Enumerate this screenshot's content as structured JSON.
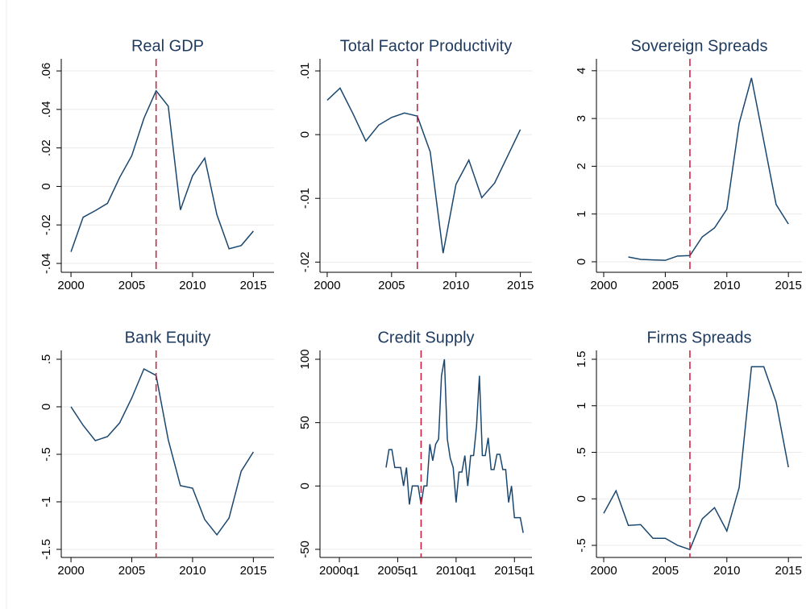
{
  "chart_data": [
    {
      "type": "line",
      "title": "Real GDP",
      "x": [
        2000,
        2001,
        2002,
        2003,
        2004,
        2005,
        2006,
        2007,
        2008,
        2009,
        2010,
        2011,
        2012,
        2013,
        2014,
        2015
      ],
      "series": [
        {
          "color": "#1a476f",
          "values": [
            -0.034,
            -0.016,
            -0.0126,
            -0.0088,
            0.0046,
            0.016,
            0.0354,
            0.0497,
            0.0417,
            -0.0122,
            0.0055,
            0.0147,
            -0.0147,
            -0.0324,
            -0.0307,
            -0.0232
          ]
        }
      ],
      "xlim": [
        1999.2,
        2016.7
      ],
      "xticks": [
        2000,
        2005,
        2010,
        2015
      ],
      "ylim": [
        -0.0446,
        0.0663
      ],
      "yticks": [
        {
          "value": -0.04,
          "label": "-.04"
        },
        {
          "value": -0.02,
          "label": "-.02"
        },
        0,
        {
          "value": 0.02,
          "label": ".02"
        },
        {
          "value": 0.04,
          "label": ".04"
        },
        {
          "value": 0.06,
          "label": ".06"
        }
      ],
      "grid": true,
      "vline": 2007,
      "vline_color": "#d4153a"
    },
    {
      "type": "line",
      "title": "Total Factor Productivity",
      "x": [
        2000,
        2001,
        2002,
        2003,
        2004,
        2005,
        2006,
        2007,
        2008,
        2009,
        2010,
        2011,
        2012,
        2013,
        2014,
        2015
      ],
      "series": [
        {
          "color": "#1a476f",
          "values": [
            0.0054,
            0.0073,
            0.0033,
            -0.001,
            0.0015,
            0.0027,
            0.0034,
            0.0029,
            -0.0027,
            -0.0186,
            -0.0078,
            -0.004,
            -0.0099,
            -0.0076,
            -0.0034,
            0.0008
          ]
        }
      ],
      "xlim": [
        1999.44,
        2015.9
      ],
      "xticks": [
        2000,
        2005,
        2010,
        2015
      ],
      "ylim": [
        -0.0216,
        0.0119
      ],
      "yticks": [
        {
          "value": -0.02,
          "label": "-.02"
        },
        {
          "value": -0.01,
          "label": "-.01"
        },
        0,
        {
          "value": 0.01,
          "label": ".01"
        }
      ],
      "grid": true,
      "vline": 2007,
      "vline_color": "#d4153a"
    },
    {
      "type": "line",
      "title": "Sovereign Spreads",
      "x": [
        2000,
        2001,
        2002,
        2003,
        2004,
        2005,
        2006,
        2007,
        2008,
        2009,
        2010,
        2011,
        2012,
        2013,
        2014,
        2015
      ],
      "series": [
        {
          "color": "#1a476f",
          "values": [
            null,
            null,
            0.1,
            0.05,
            0.04,
            0.03,
            0.12,
            0.13,
            0.52,
            0.71,
            1.1,
            2.9,
            3.85,
            2.53,
            1.2,
            0.79
          ]
        }
      ],
      "xlim": [
        1999.41,
        2016.1
      ],
      "xticks": [
        2000,
        2005,
        2010,
        2015
      ],
      "ylim": [
        -0.22,
        4.25
      ],
      "yticks": [
        0,
        1,
        2,
        3,
        4
      ],
      "grid": true,
      "vline": 2007,
      "vline_color": "#d4153a"
    },
    {
      "type": "line",
      "title": "Bank Equity",
      "x": [
        2000,
        2001,
        2002,
        2003,
        2004,
        2005,
        2006,
        2007,
        2008,
        2009,
        2010,
        2011,
        2012,
        2013,
        2014,
        2015
      ],
      "series": [
        {
          "color": "#1a476f",
          "values": [
            0,
            -0.195,
            -0.356,
            -0.314,
            -0.17,
            0.093,
            0.398,
            0.33,
            -0.347,
            -0.83,
            -0.856,
            -1.186,
            -1.347,
            -1.17,
            -0.678,
            -0.475
          ]
        }
      ],
      "xlim": [
        1999.2,
        2016.7
      ],
      "xticks": [
        2000,
        2005,
        2010,
        2015
      ],
      "ylim": [
        -1.585,
        0.593
      ],
      "yticks": [
        {
          "value": -1.5,
          "label": "-1.5"
        },
        -1,
        {
          "value": -0.5,
          "label": "-.5"
        },
        0,
        {
          "value": 0.5,
          "label": ".5"
        }
      ],
      "grid": true,
      "vline": 2007,
      "vline_color": "#d4153a"
    },
    {
      "type": "line",
      "title": "Credit Supply",
      "x": [
        2004,
        2004.25,
        2004.5,
        2004.75,
        2005,
        2005.25,
        2005.5,
        2005.75,
        2006,
        2006.25,
        2006.5,
        2006.75,
        2007,
        2007.25,
        2007.5,
        2007.75,
        2008,
        2008.25,
        2008.5,
        2008.75,
        2009,
        2009.25,
        2009.5,
        2009.75,
        2010,
        2010.25,
        2010.5,
        2010.75,
        2011,
        2011.25,
        2011.5,
        2011.75,
        2012,
        2012.25,
        2012.5,
        2012.75,
        2013,
        2013.25,
        2013.5,
        2013.75,
        2014,
        2014.25,
        2014.5,
        2014.75,
        2015,
        2015.25,
        2015.5,
        2015.75
      ],
      "series": [
        {
          "color": "#1a476f",
          "values": [
            14.6,
            28.7,
            28.7,
            14.6,
            14.6,
            14.6,
            0,
            14.6,
            -14.6,
            0,
            0,
            0,
            -14.6,
            0,
            0,
            33,
            20,
            33,
            37,
            87,
            100,
            37,
            22,
            14.6,
            -13,
            11,
            11,
            24,
            0,
            24,
            24,
            47,
            87,
            24,
            24,
            38,
            13,
            13,
            25,
            25,
            13,
            13,
            -13,
            0,
            -25,
            -25,
            -25,
            -37
          ]
        }
      ],
      "xlim": [
        1998.34,
        2016.5
      ],
      "xticks": [
        {
          "value": 2000,
          "label": "2000q1"
        },
        {
          "value": 2005,
          "label": "2005q1"
        },
        {
          "value": 2010,
          "label": "2010q1"
        },
        {
          "value": 2015,
          "label": "2015q1"
        }
      ],
      "ylim": [
        -56.4,
        107
      ],
      "yticks": [
        -50,
        0,
        50,
        100
      ],
      "grid": true,
      "vline": 2007,
      "vline_color": "#d4153a"
    },
    {
      "type": "line",
      "title": "Firms Spreads",
      "x": [
        2000,
        2001,
        2002,
        2003,
        2004,
        2005,
        2006,
        2007,
        2008,
        2009,
        2010,
        2011,
        2012,
        2013,
        2014,
        2015
      ],
      "series": [
        {
          "color": "#1a476f",
          "values": [
            -0.156,
            0.087,
            -0.286,
            -0.277,
            -0.424,
            -0.424,
            -0.5,
            -0.545,
            -0.216,
            -0.095,
            -0.346,
            0.121,
            1.42,
            1.42,
            1.04,
            0.34
          ]
        }
      ],
      "xlim": [
        1999.41,
        2016.1
      ],
      "xticks": [
        2000,
        2005,
        2010,
        2015
      ],
      "ylim": [
        -0.63,
        1.595
      ],
      "yticks": [
        {
          "value": -0.5,
          "label": "-.5"
        },
        0,
        {
          "value": 0.5,
          "label": ".5"
        },
        1,
        1.5
      ],
      "grid": true,
      "vline": 2007,
      "vline_color": "#d4153a"
    }
  ]
}
